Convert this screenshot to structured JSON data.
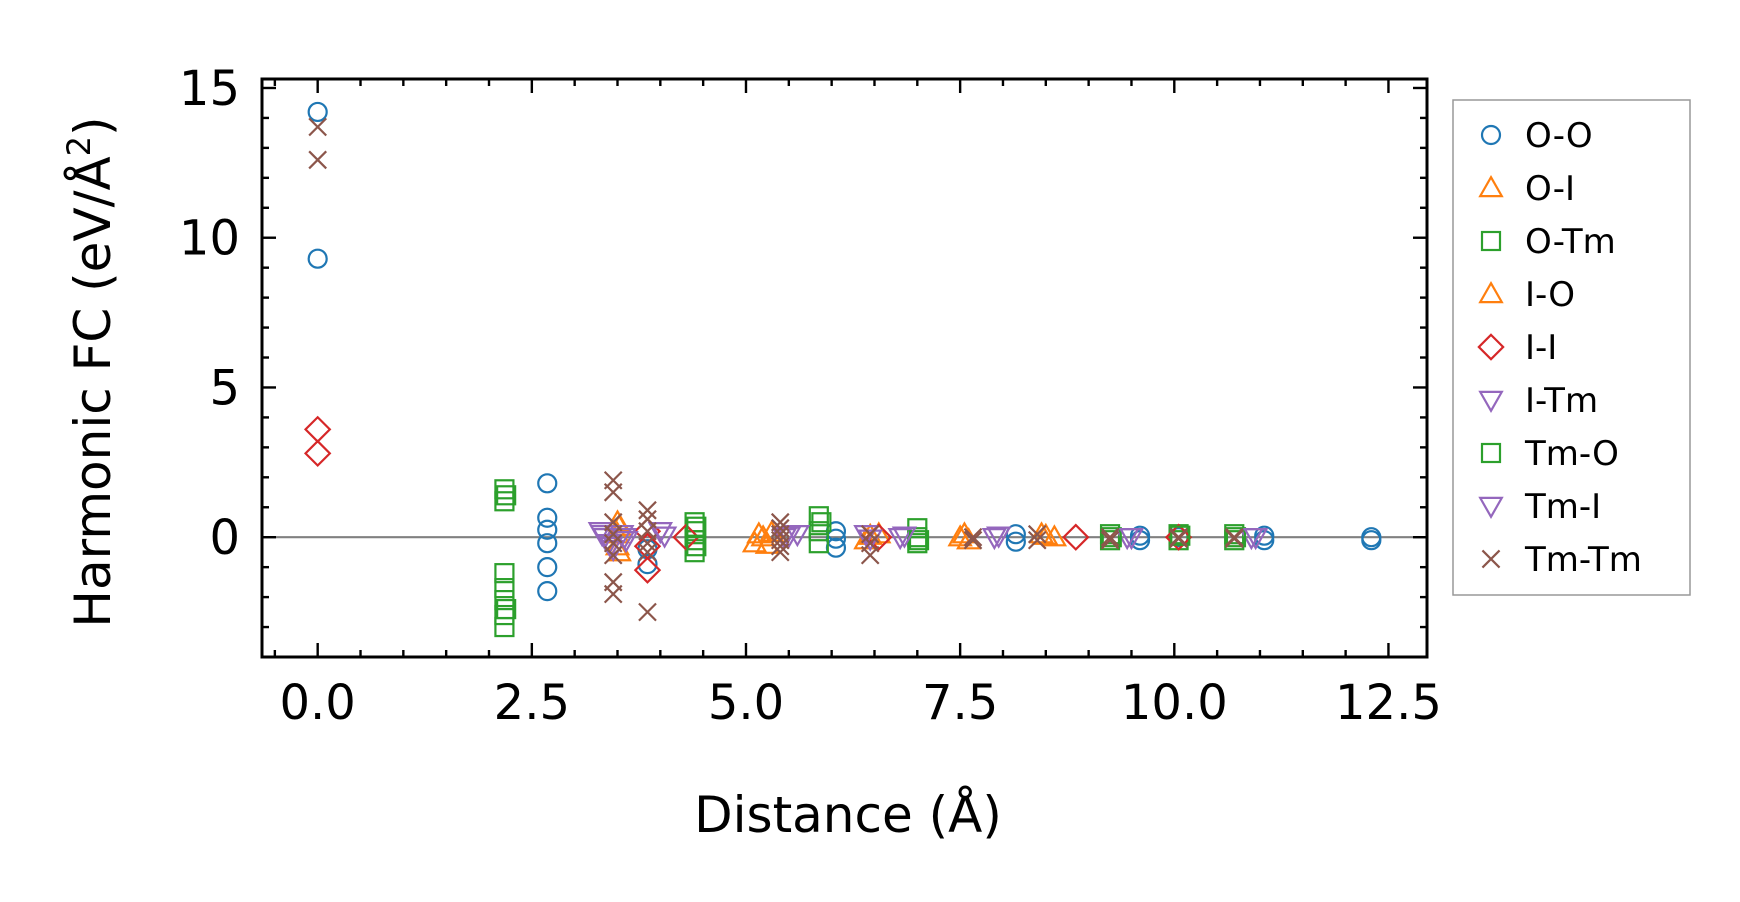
{
  "chart_data": {
    "type": "scatter",
    "xlabel": "Distance (Å)",
    "ylabel": "Harmonic FC (eV/Å²)",
    "ylabel_parts": {
      "main": "Harmonic FC (eV/Å",
      "sup": "2",
      "close": ")"
    },
    "xlim": [
      -0.65,
      12.95
    ],
    "ylim": [
      -4.0,
      15.3
    ],
    "xticks": [
      0.0,
      2.5,
      5.0,
      7.5,
      10.0,
      12.5
    ],
    "xtick_labels": [
      "0.0",
      "2.5",
      "5.0",
      "7.5",
      "10.0",
      "12.5"
    ],
    "yticks": [
      0,
      5,
      10,
      15
    ],
    "ytick_labels": [
      "0",
      "5",
      "10",
      "15"
    ],
    "x_minor_step": 0.5,
    "y_minor_step": 1,
    "reference_line_y": 0,
    "grid": false,
    "legend_position": "outside-right",
    "series": [
      {
        "name": "O-O",
        "marker": "circle",
        "color": "#1f77b4",
        "x": [
          0.0,
          0.0,
          2.68,
          2.68,
          2.68,
          2.68,
          2.68,
          2.68,
          3.85,
          3.85,
          6.05,
          6.05,
          6.05,
          8.15,
          8.15,
          9.6,
          9.6,
          10.05,
          11.05,
          11.05,
          12.3,
          12.3
        ],
        "y": [
          14.2,
          9.3,
          1.8,
          0.65,
          0.25,
          -0.2,
          -1.0,
          -1.8,
          -0.4,
          -0.9,
          0.2,
          -0.05,
          -0.35,
          0.1,
          -0.15,
          0.05,
          -0.1,
          0.0,
          0.05,
          -0.1,
          0.0,
          -0.1
        ]
      },
      {
        "name": "O-I",
        "marker": "triangle-up",
        "color": "#ff7f0e",
        "x": [
          3.5,
          3.5,
          3.5,
          5.1,
          5.2,
          5.3,
          6.4,
          6.55,
          7.5,
          7.6,
          8.45,
          8.6
        ],
        "y": [
          0.5,
          0.1,
          -0.3,
          -0.2,
          0.0,
          0.15,
          -0.1,
          0.1,
          0.0,
          -0.1,
          0.1,
          0.0
        ]
      },
      {
        "name": "O-Tm",
        "marker": "square",
        "color": "#2ca02c",
        "x": [
          2.18,
          2.18,
          2.18,
          2.18,
          2.18,
          2.18,
          2.18,
          4.4,
          4.4,
          4.4,
          4.4,
          5.85,
          5.85,
          5.85,
          7.0,
          7.0,
          7.0,
          9.25,
          9.25,
          10.05,
          10.05,
          10.7,
          10.7
        ],
        "y": [
          1.6,
          1.2,
          -1.2,
          -1.7,
          -2.1,
          -2.6,
          -3.0,
          0.5,
          0.2,
          -0.1,
          -0.5,
          0.7,
          0.2,
          -0.2,
          0.3,
          0.0,
          -0.2,
          0.1,
          -0.1,
          0.1,
          -0.1,
          0.1,
          -0.1
        ]
      },
      {
        "name": "I-O",
        "marker": "triangle-up",
        "color": "#ff7f0e",
        "x": [
          3.52,
          3.52,
          5.15,
          5.25,
          6.45,
          7.55,
          8.5
        ],
        "y": [
          0.35,
          -0.5,
          0.1,
          -0.25,
          0.05,
          0.1,
          0.05
        ]
      },
      {
        "name": "I-I",
        "marker": "diamond",
        "color": "#d62728",
        "x": [
          0.0,
          0.0,
          3.85,
          3.85,
          3.85,
          4.3,
          6.55,
          8.85,
          10.05
        ],
        "y": [
          3.6,
          2.8,
          0.2,
          -0.3,
          -1.1,
          0.0,
          0.0,
          0.0,
          0.0
        ]
      },
      {
        "name": "I-Tm",
        "marker": "triangle-down",
        "color": "#9467bd",
        "x": [
          3.3,
          3.35,
          3.4,
          3.45,
          3.55,
          3.6,
          4.0,
          5.45,
          5.6,
          6.4,
          6.8,
          7.9,
          9.45,
          10.9
        ],
        "y": [
          0.2,
          0.0,
          -0.2,
          -0.4,
          0.1,
          -0.1,
          0.2,
          0.0,
          0.1,
          0.1,
          0.0,
          0.0,
          0.0,
          0.0
        ]
      },
      {
        "name": "Tm-O",
        "marker": "square",
        "color": "#2ca02c",
        "x": [
          2.2,
          2.2,
          4.42,
          4.42,
          5.88,
          7.02,
          9.27,
          10.07,
          10.72
        ],
        "y": [
          1.4,
          -2.4,
          0.35,
          -0.3,
          0.5,
          -0.1,
          0.0,
          0.05,
          0.0
        ]
      },
      {
        "name": "Tm-I",
        "marker": "triangle-down",
        "color": "#9467bd",
        "x": [
          3.32,
          3.42,
          3.58,
          4.05,
          5.5,
          6.45,
          6.85,
          7.95,
          9.5,
          10.95
        ],
        "y": [
          0.1,
          -0.3,
          0.0,
          0.05,
          0.05,
          -0.05,
          0.05,
          0.05,
          0.0,
          0.0
        ]
      },
      {
        "name": "Tm-Tm",
        "marker": "x",
        "color": "#8c564b",
        "x": [
          0.0,
          0.0,
          3.45,
          3.45,
          3.45,
          3.45,
          3.45,
          3.45,
          3.45,
          3.45,
          3.85,
          3.85,
          3.85,
          3.85,
          3.85,
          3.85,
          5.4,
          5.4,
          5.4,
          5.4,
          5.4,
          5.4,
          6.45,
          6.45,
          6.45,
          7.65,
          7.65,
          8.4,
          8.4,
          9.25,
          9.25,
          10.05,
          10.05,
          10.7,
          10.7
        ],
        "y": [
          13.7,
          12.6,
          1.9,
          1.5,
          0.5,
          0.1,
          -0.2,
          -0.6,
          -1.5,
          -1.9,
          0.9,
          0.6,
          0.2,
          -0.2,
          -0.5,
          -2.5,
          0.5,
          0.3,
          0.1,
          -0.1,
          -0.3,
          -0.5,
          0.1,
          -0.2,
          -0.6,
          0.0,
          -0.1,
          0.1,
          -0.1,
          0.0,
          -0.1,
          0.0,
          -0.05,
          0.0,
          -0.05
        ]
      }
    ]
  }
}
